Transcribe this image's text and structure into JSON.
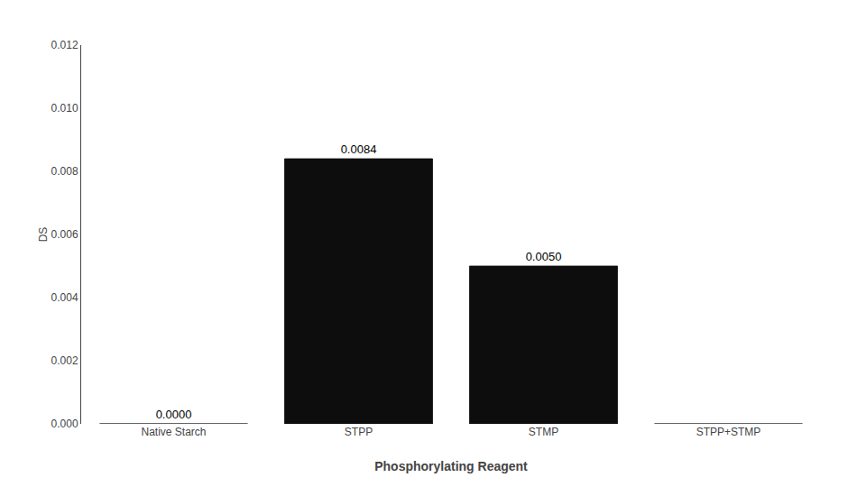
{
  "chart_data": {
    "type": "bar",
    "categories": [
      "Native Starch",
      "STPP",
      "STMP",
      "STPP+STMP"
    ],
    "values": [
      0.0,
      0.0084,
      0.005,
      0.0
    ],
    "value_labels": [
      "0.0000",
      "0.0084",
      "0.0050",
      null
    ],
    "data_labels": true,
    "color": "#0d0d0d",
    "xlabel": "Phosphorylating Reagent",
    "ylabel": "DS",
    "ylim": [
      0,
      0.012
    ],
    "yticks": [
      {
        "value": 0,
        "label": "0.000"
      },
      0.002,
      0.004,
      0.006,
      0.008,
      {
        "value": 0.01,
        "label": "0.010"
      },
      0.012
    ],
    "grid": false
  }
}
